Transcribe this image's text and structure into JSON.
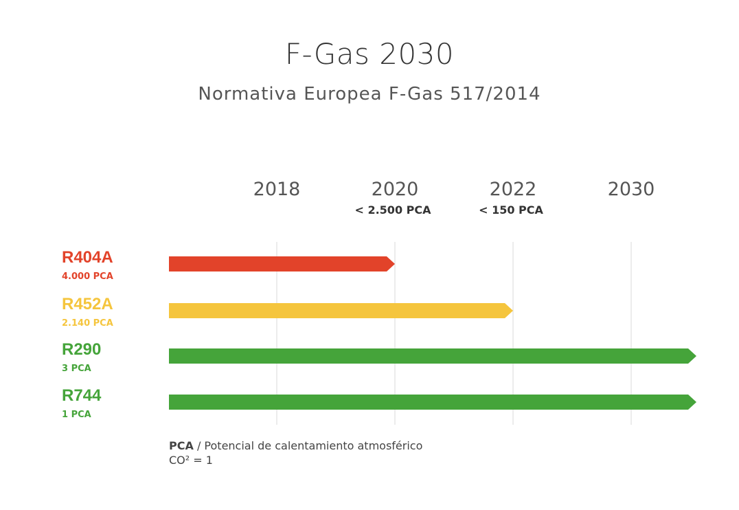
{
  "chart_data": {
    "type": "bar",
    "title": "F-Gas 2030",
    "subtitle": "Normativa Europea F-Gas 517/2014",
    "timeline_years": [
      "2018",
      "2020",
      "2022",
      "2030"
    ],
    "limits": [
      {
        "year": "2020",
        "label": "< 2.500 PCA"
      },
      {
        "year": "2022",
        "label": "< 150 PCA"
      }
    ],
    "series": [
      {
        "name": "R404A",
        "pca": "4.000 PCA",
        "until": "2020",
        "color": "#e2432a"
      },
      {
        "name": "R452A",
        "pca": "2.140 PCA",
        "until": "2022",
        "color": "#f5c53d"
      },
      {
        "name": "R290",
        "pca": "3 PCA",
        "until": "2030+",
        "color": "#45a43a"
      },
      {
        "name": "R744",
        "pca": "1 PCA",
        "until": "2030+",
        "color": "#45a43a"
      }
    ],
    "grid": true
  },
  "legend": {
    "abbr": "PCA",
    "separator": " / ",
    "definition": "Potencial de calentamiento atmosférico",
    "reference": "CO² = 1"
  }
}
